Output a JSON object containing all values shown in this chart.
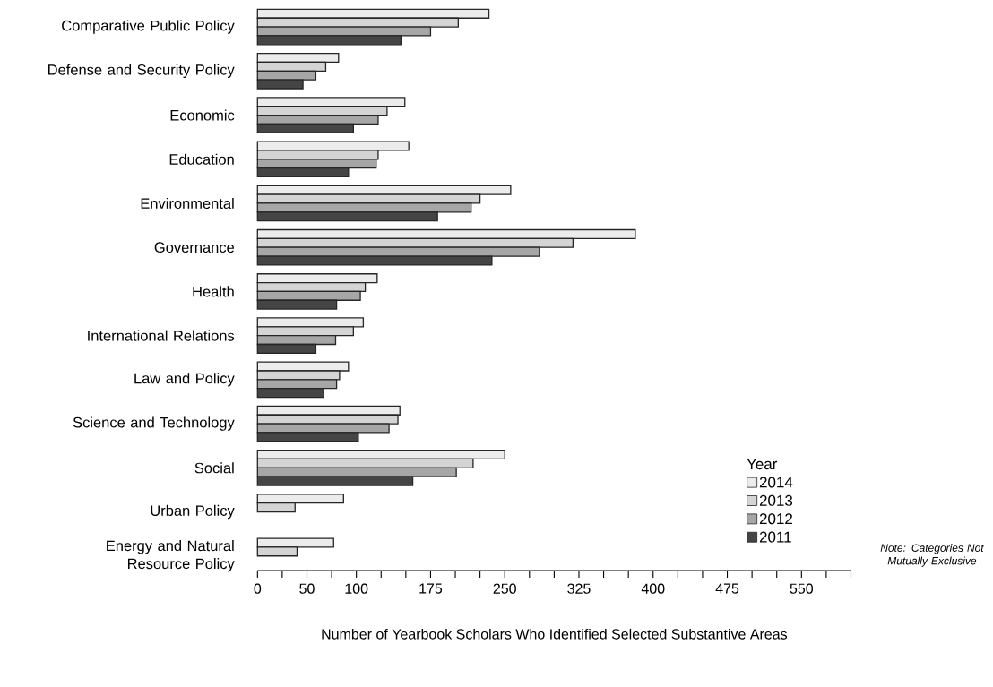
{
  "chart_data": {
    "type": "bar",
    "orientation": "horizontal",
    "categories": [
      "Comparative Public Policy",
      "Defense and Security Policy",
      "Economic",
      "Education",
      "Environmental",
      "Governance",
      "Health",
      "International Relations",
      "Law and Policy",
      "Science and Technology",
      "Social",
      "Urban Policy",
      "Energy and Natural Resource Policy"
    ],
    "series": [
      {
        "name": "2014",
        "color": "#ececec",
        "values": [
          234,
          82,
          149,
          153,
          256,
          382,
          121,
          107,
          92,
          144,
          250,
          87,
          77
        ]
      },
      {
        "name": "2013",
        "color": "#d4d4d4",
        "values": [
          203,
          69,
          131,
          122,
          225,
          319,
          109,
          97,
          83,
          142,
          218,
          38,
          40
        ]
      },
      {
        "name": "2012",
        "color": "#a6a6a6",
        "values": [
          175,
          59,
          122,
          120,
          216,
          285,
          104,
          79,
          80,
          133,
          201,
          null,
          null
        ]
      },
      {
        "name": "2011",
        "color": "#454545",
        "values": [
          145,
          46,
          97,
          92,
          182,
          237,
          80,
          59,
          67,
          102,
          157,
          null,
          null
        ]
      }
    ],
    "xlim": [
      0,
      600
    ],
    "xticks": [
      0,
      {
        "value": 25,
        "label": null
      },
      50,
      {
        "value": 75,
        "label": null
      },
      100,
      {
        "value": 125,
        "label": null
      },
      {
        "value": 150,
        "label": null
      },
      175,
      {
        "value": 200,
        "label": null
      },
      {
        "value": 225,
        "label": null
      },
      250,
      {
        "value": 275,
        "label": null
      },
      {
        "value": 300,
        "label": null
      },
      325,
      {
        "value": 350,
        "label": null
      },
      {
        "value": 375,
        "label": null
      },
      400,
      {
        "value": 425,
        "label": null
      },
      {
        "value": 450,
        "label": null
      },
      475,
      {
        "value": 500,
        "label": null
      },
      {
        "value": 525,
        "label": null
      },
      550,
      {
        "value": 575,
        "label": null
      },
      {
        "value": 600,
        "label": null
      }
    ],
    "xlabel": "Number of Yearbook Scholars Who Identified Selected Substantive Areas",
    "legend": "bottom right",
    "legend_title": "Year",
    "annotations": [
      "*Note: Categories Not Mutually Exclusive*"
    ]
  }
}
